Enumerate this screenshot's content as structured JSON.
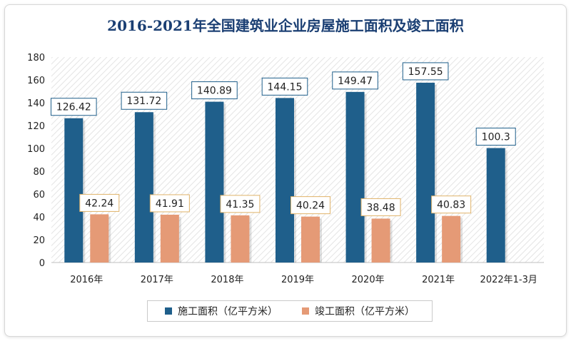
{
  "chart_data": {
    "type": "bar",
    "title": "2016-2021年全国建筑业企业房屋施工面积及竣工面积",
    "categories": [
      "2016年",
      "2017年",
      "2018年",
      "2019年",
      "2020年",
      "2021年",
      "2022年1-3月"
    ],
    "series": [
      {
        "name": "施工面积（亿平方米）",
        "color": "#1f5f8b",
        "label_border": "#1f5f8b",
        "values": [
          126.42,
          131.72,
          140.89,
          144.15,
          149.47,
          157.55,
          100.3
        ],
        "labels": [
          "126.42",
          "131.72",
          "140.89",
          "144.15",
          "149.47",
          "157.55",
          "100.3"
        ]
      },
      {
        "name": "竣工面积（亿平方米）",
        "color": "#e59a76",
        "label_border": "#e0b36a",
        "values": [
          42.24,
          41.91,
          41.35,
          40.24,
          38.48,
          40.83,
          null
        ],
        "labels": [
          "42.24",
          "41.91",
          "41.35",
          "40.24",
          "38.48",
          "40.83",
          ""
        ]
      }
    ],
    "ylim": [
      0,
      180
    ],
    "yticks": [
      0,
      20,
      40,
      60,
      80,
      100,
      120,
      140,
      160,
      180
    ],
    "ytick_labels": [
      "0",
      "20",
      "40",
      "60",
      "80",
      "100",
      "120",
      "140",
      "160",
      "180"
    ],
    "xlabel": "",
    "ylabel": "",
    "legend": "bottom-center",
    "grid": false
  }
}
